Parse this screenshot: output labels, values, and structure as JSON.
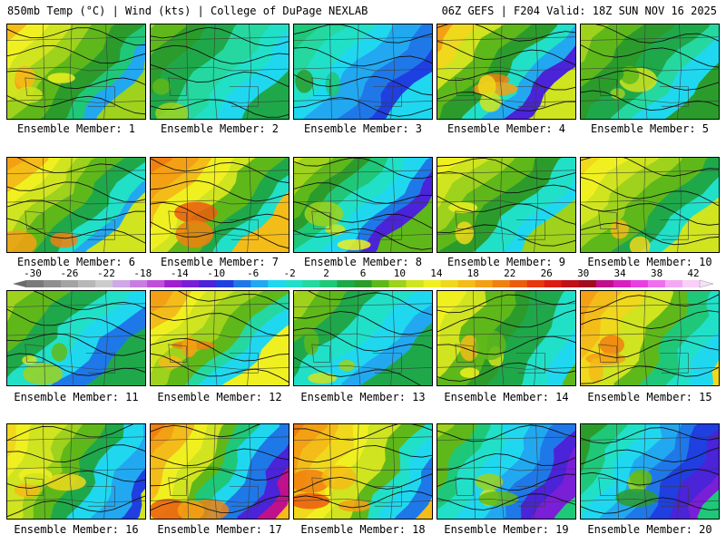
{
  "header": {
    "title_left": "850mb Temp (°C) | Wind (kts) | College of DuPage NEXLAB",
    "title_right": "06Z GEFS | F204 Valid: 18Z SUN NOV 16 2025"
  },
  "colorbar": {
    "labels": [
      "-30",
      "-26",
      "-22",
      "-18",
      "-14",
      "-10",
      "-6",
      "-2",
      "2",
      "6",
      "10",
      "14",
      "18",
      "22",
      "26",
      "30",
      "34",
      "38",
      "42"
    ],
    "colors": [
      "#7a7a7a",
      "#8f8f8f",
      "#a3a3a3",
      "#b8b8b8",
      "#cccccc",
      "#cfa8e8",
      "#c77ee0",
      "#bf4fd8",
      "#a020d0",
      "#7a1ed8",
      "#4b23d8",
      "#1f3fe0",
      "#1f78e8",
      "#22a8f0",
      "#1fd8f0",
      "#21e0c8",
      "#25d8a0",
      "#1fc878",
      "#1fa84a",
      "#2b9c2b",
      "#5fb81a",
      "#9ed21c",
      "#d0e420",
      "#f0f020",
      "#f0d81c",
      "#f4bc18",
      "#f4a014",
      "#f08010",
      "#ec5c10",
      "#e83810",
      "#dc1c14",
      "#c01018",
      "#a00c20",
      "#c0108c",
      "#d820c0",
      "#e840e0",
      "#ee70ee",
      "#f4a8f4",
      "#f8d0f8"
    ]
  },
  "panels": [
    {
      "caption": "Ensemble Member: 1",
      "palette": [
        "#22a8f0",
        "#1fc878",
        "#2b9c2b",
        "#5fb81a",
        "#9ed21c",
        "#d0e420",
        "#f0f020",
        "#f4bc18",
        "#f4a014"
      ],
      "base": 4
    },
    {
      "caption": "Ensemble Member: 2",
      "palette": [
        "#1fd8f0",
        "#21e0c8",
        "#25d8a0",
        "#1fa84a",
        "#2b9c2b",
        "#5fb81a",
        "#9ed21c"
      ],
      "base": 3
    },
    {
      "caption": "Ensemble Member: 3",
      "palette": [
        "#1f3fe0",
        "#1f78e8",
        "#22a8f0",
        "#1fd8f0",
        "#21e0c8",
        "#25d8a0",
        "#1fc878",
        "#2b9c2b"
      ],
      "base": 3
    },
    {
      "caption": "Ensemble Member: 4",
      "palette": [
        "#4b23d8",
        "#22a8f0",
        "#21e0c8",
        "#2b9c2b",
        "#5fb81a",
        "#d0e420",
        "#f0d81c",
        "#f4a014",
        "#f08010"
      ],
      "base": 5
    },
    {
      "caption": "Ensemble Member: 5",
      "palette": [
        "#1fd8f0",
        "#25d8a0",
        "#1fa84a",
        "#2b9c2b",
        "#5fb81a",
        "#9ed21c",
        "#d0e420"
      ],
      "base": 3
    },
    {
      "caption": "Ensemble Member: 6",
      "palette": [
        "#22a8f0",
        "#21e0c8",
        "#1fa84a",
        "#5fb81a",
        "#9ed21c",
        "#d0e420",
        "#f0f020",
        "#f4bc18",
        "#f4a014",
        "#f08010"
      ],
      "base": 5
    },
    {
      "caption": "Ensemble Member: 7",
      "palette": [
        "#21e0c8",
        "#1fa84a",
        "#5fb81a",
        "#d0e420",
        "#f0f020",
        "#f4bc18",
        "#f4a014",
        "#f08010",
        "#ec5c10"
      ],
      "base": 5
    },
    {
      "caption": "Ensemble Member: 8",
      "palette": [
        "#4b23d8",
        "#1f78e8",
        "#1fd8f0",
        "#21e0c8",
        "#1fc878",
        "#2b9c2b",
        "#5fb81a",
        "#9ed21c",
        "#d0e420",
        "#f0f020"
      ],
      "base": 6
    },
    {
      "caption": "Ensemble Member: 9",
      "palette": [
        "#1fd8f0",
        "#21e0c8",
        "#2b9c2b",
        "#5fb81a",
        "#9ed21c",
        "#d0e420",
        "#f0f020",
        "#f0d81c"
      ],
      "base": 4
    },
    {
      "caption": "Ensemble Member: 10",
      "palette": [
        "#21e0c8",
        "#1fa84a",
        "#5fb81a",
        "#9ed21c",
        "#d0e420",
        "#f0f020",
        "#f0d81c",
        "#f4bc18"
      ],
      "base": 4
    },
    {
      "caption": "Ensemble Member: 11",
      "palette": [
        "#1f78e8",
        "#1fd8f0",
        "#21e0c8",
        "#1fa84a",
        "#5fb81a",
        "#9ed21c",
        "#d0e420"
      ],
      "base": 3
    },
    {
      "caption": "Ensemble Member: 12",
      "palette": [
        "#1fd8f0",
        "#25d8a0",
        "#5fb81a",
        "#9ed21c",
        "#d0e420",
        "#f0f020",
        "#f4bc18",
        "#f4a014",
        "#f08010"
      ],
      "base": 5
    },
    {
      "caption": "Ensemble Member: 13",
      "palette": [
        "#22a8f0",
        "#1fd8f0",
        "#21e0c8",
        "#1fa84a",
        "#5fb81a",
        "#9ed21c",
        "#d0e420"
      ],
      "base": 3
    },
    {
      "caption": "Ensemble Member: 14",
      "palette": [
        "#1fd8f0",
        "#21e0c8",
        "#1fa84a",
        "#2b9c2b",
        "#5fb81a",
        "#d0e420",
        "#f0f020",
        "#f4bc18"
      ],
      "base": 4
    },
    {
      "caption": "Ensemble Member: 15",
      "palette": [
        "#1fd8f0",
        "#21e0c8",
        "#1fc878",
        "#5fb81a",
        "#d0e420",
        "#f0d81c",
        "#f4bc18",
        "#f4a014",
        "#f08010"
      ],
      "base": 5
    },
    {
      "caption": "Ensemble Member: 16",
      "palette": [
        "#1f3fe0",
        "#22a8f0",
        "#1fd8f0",
        "#1fa84a",
        "#5fb81a",
        "#9ed21c",
        "#d0e420",
        "#f0f020",
        "#f0d81c",
        "#f4bc18"
      ],
      "base": 6
    },
    {
      "caption": "Ensemble Member: 17",
      "palette": [
        "#c0108c",
        "#4b23d8",
        "#1f78e8",
        "#1fd8f0",
        "#1fc878",
        "#5fb81a",
        "#d0e420",
        "#f0f020",
        "#f4bc18",
        "#f4a014",
        "#f08010",
        "#ec5c10"
      ],
      "base": 8
    },
    {
      "caption": "Ensemble Member: 18",
      "palette": [
        "#1f78e8",
        "#1fd8f0",
        "#21e0c8",
        "#5fb81a",
        "#d0e420",
        "#f0f020",
        "#f0d81c",
        "#f4bc18",
        "#f4a014",
        "#f08010",
        "#ec5c10"
      ],
      "base": 7
    },
    {
      "caption": "Ensemble Member: 19",
      "palette": [
        "#7a1ed8",
        "#4b23d8",
        "#1f78e8",
        "#22a8f0",
        "#1fd8f0",
        "#21e0c8",
        "#1fc878",
        "#5fb81a",
        "#9ed21c",
        "#d0e420"
      ],
      "base": 6
    },
    {
      "caption": "Ensemble Member: 20",
      "palette": [
        "#7a1ed8",
        "#4b23d8",
        "#1f3fe0",
        "#1f78e8",
        "#22a8f0",
        "#1fd8f0",
        "#21e0c8",
        "#1fc878",
        "#2b9c2b",
        "#5fb81a",
        "#9ed21c"
      ],
      "base": 7
    }
  ]
}
